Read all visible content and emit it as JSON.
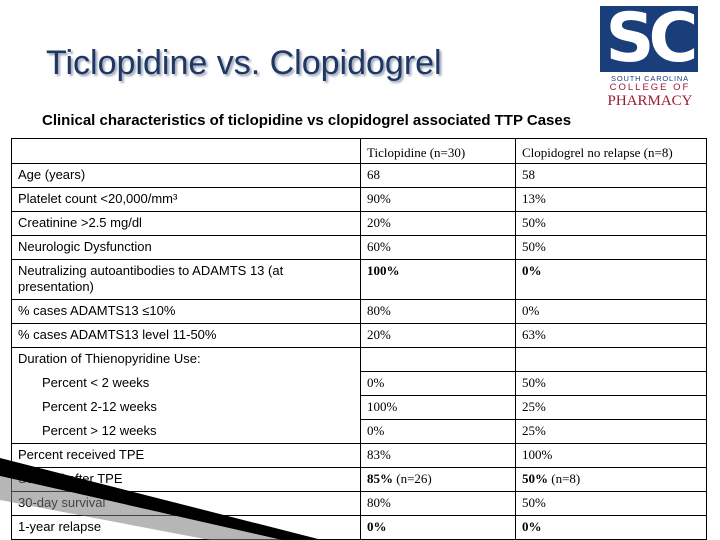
{
  "slide": {
    "title": "Ticlopidine vs. Clopidogrel",
    "subtitle": "Clinical characteristics of ticlopidine vs clopidogrel associated TTP Cases"
  },
  "logo": {
    "letters": "SC",
    "line1": "SOUTH CAROLINA",
    "line2": "COLLEGE OF",
    "line3": "PHARMACY",
    "primary_color": "#1a3e7a",
    "secondary_color": "#9e1b32"
  },
  "table": {
    "headers": [
      "",
      "Ticlopidine (n=30)",
      "Clopidogrel no relapse (n=8)"
    ],
    "rows": [
      {
        "label": "Age (years)",
        "ticlopidine": "68",
        "clopidogrel": "58"
      },
      {
        "label": "Platelet count <20,000/mm³",
        "ticlopidine": "90%",
        "clopidogrel": "13%"
      },
      {
        "label": "Creatinine >2.5 mg/dl",
        "ticlopidine": "20%",
        "clopidogrel": "50%"
      },
      {
        "label": "Neurologic Dysfunction",
        "ticlopidine": "60%",
        "clopidogrel": "50%"
      },
      {
        "label": "Neutralizing autoantibodies to ADAMTS 13 (at presentation)",
        "ticlopidine": "100%",
        "clopidogrel": "0%"
      },
      {
        "label": "% cases ADAMTS13 ≤10%",
        "ticlopidine": "80%",
        "clopidogrel": "0%"
      },
      {
        "label": "% cases ADAMTS13 level 11-50%",
        "ticlopidine": "20%",
        "clopidogrel": "63%"
      },
      {
        "label": "Duration of Thienopyridine Use:",
        "ticlopidine": "",
        "clopidogrel": ""
      },
      {
        "label": "Percent < 2 weeks",
        "ticlopidine": "0%",
        "clopidogrel": "50%"
      },
      {
        "label": "Percent 2-12 weeks",
        "ticlopidine": "100%",
        "clopidogrel": "25%"
      },
      {
        "label": "Percent > 12 weeks",
        "ticlopidine": "0%",
        "clopidogrel": "25%"
      },
      {
        "label": "Percent received TPE",
        "ticlopidine": "83%",
        "clopidogrel": "100%"
      },
      {
        "label": "Survival after TPE",
        "ticlopidine": "85%",
        "ticlopidine_note": " (n=26)",
        "clopidogrel": "50%",
        "clopidogrel_note": " (n=8)"
      },
      {
        "label": "30-day survival",
        "ticlopidine": "80%",
        "clopidogrel": "50%"
      },
      {
        "label": "1-year relapse",
        "ticlopidine": "0%",
        "clopidogrel": "0%"
      }
    ]
  }
}
